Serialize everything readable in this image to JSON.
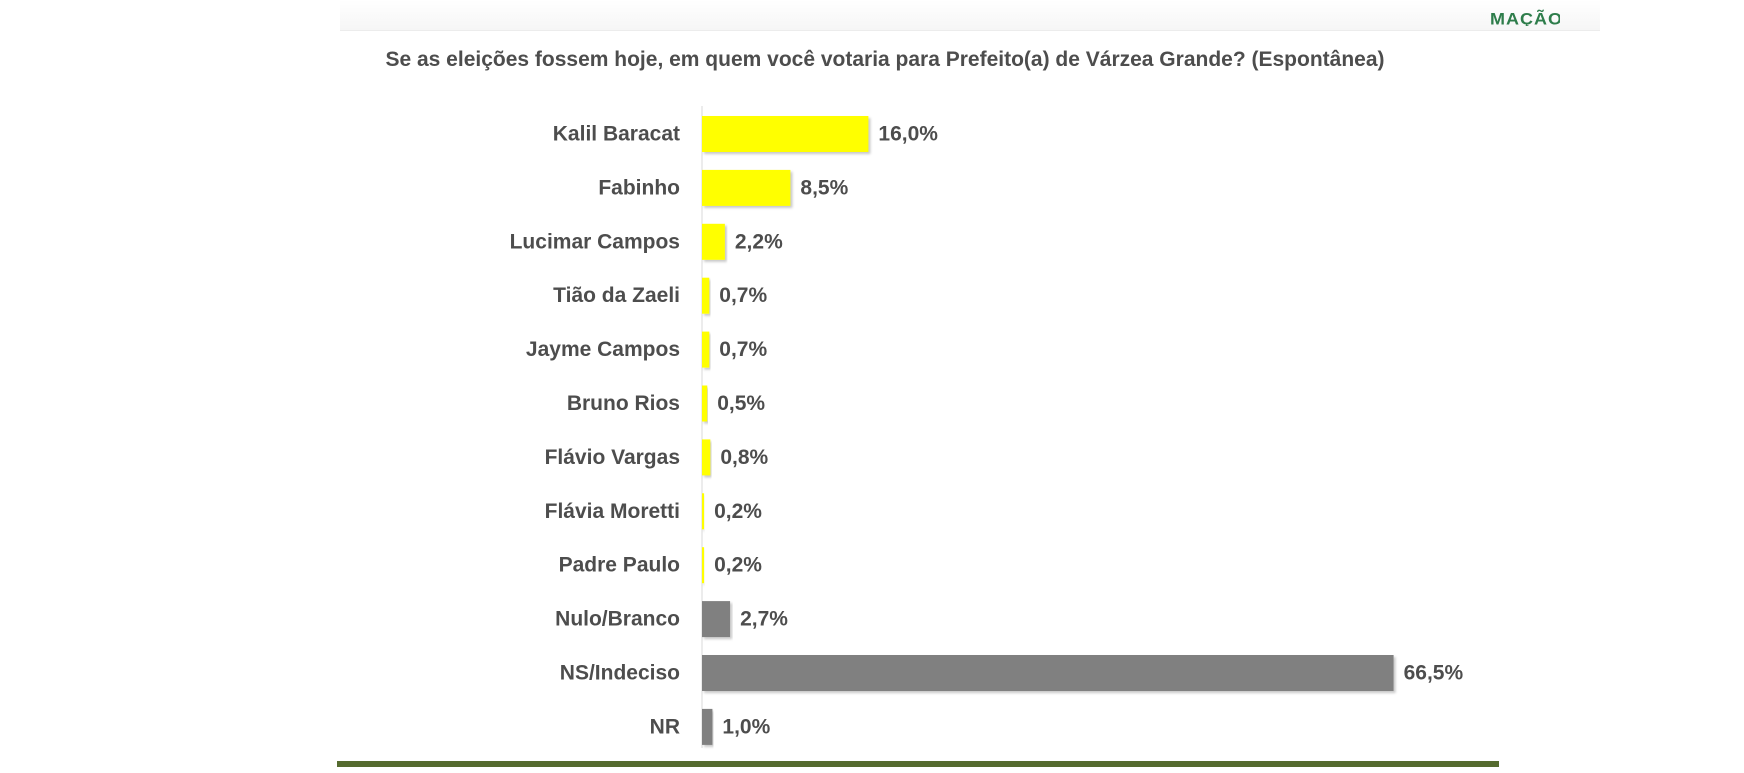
{
  "logo": {
    "fragment_text": "MAÇÃO"
  },
  "chart_data": {
    "type": "bar",
    "orientation": "horizontal",
    "title": "Se as eleições fossem hoje, em quem você votaria para Prefeito(a) de Várzea Grande? (Espontânea)",
    "xlabel": "",
    "ylabel": "",
    "xlim": [
      0,
      70
    ],
    "grid": false,
    "legend": "none",
    "categories": [
      "Kalil Baracat",
      "Fabinho",
      "Lucimar Campos",
      "Tião da Zaeli",
      "Jayme Campos",
      "Bruno Rios",
      "Flávio Vargas",
      "Flávia Moretti",
      "Padre Paulo",
      "Nulo/Branco",
      "NS/Indeciso",
      "NR"
    ],
    "values": [
      16.0,
      8.5,
      2.2,
      0.7,
      0.7,
      0.5,
      0.8,
      0.2,
      0.2,
      2.7,
      66.5,
      1.0
    ],
    "labels": [
      "16,0%",
      "8,5%",
      "2,2%",
      "0,7%",
      "0,7%",
      "0,5%",
      "0,8%",
      "0,2%",
      "0,2%",
      "2,7%",
      "66,5%",
      "1,0%"
    ],
    "colors": [
      "#ffff00",
      "#ffff00",
      "#ffff00",
      "#ffff00",
      "#ffff00",
      "#ffff00",
      "#ffff00",
      "#ffff00",
      "#ffff00",
      "#808080",
      "#808080",
      "#808080"
    ]
  }
}
